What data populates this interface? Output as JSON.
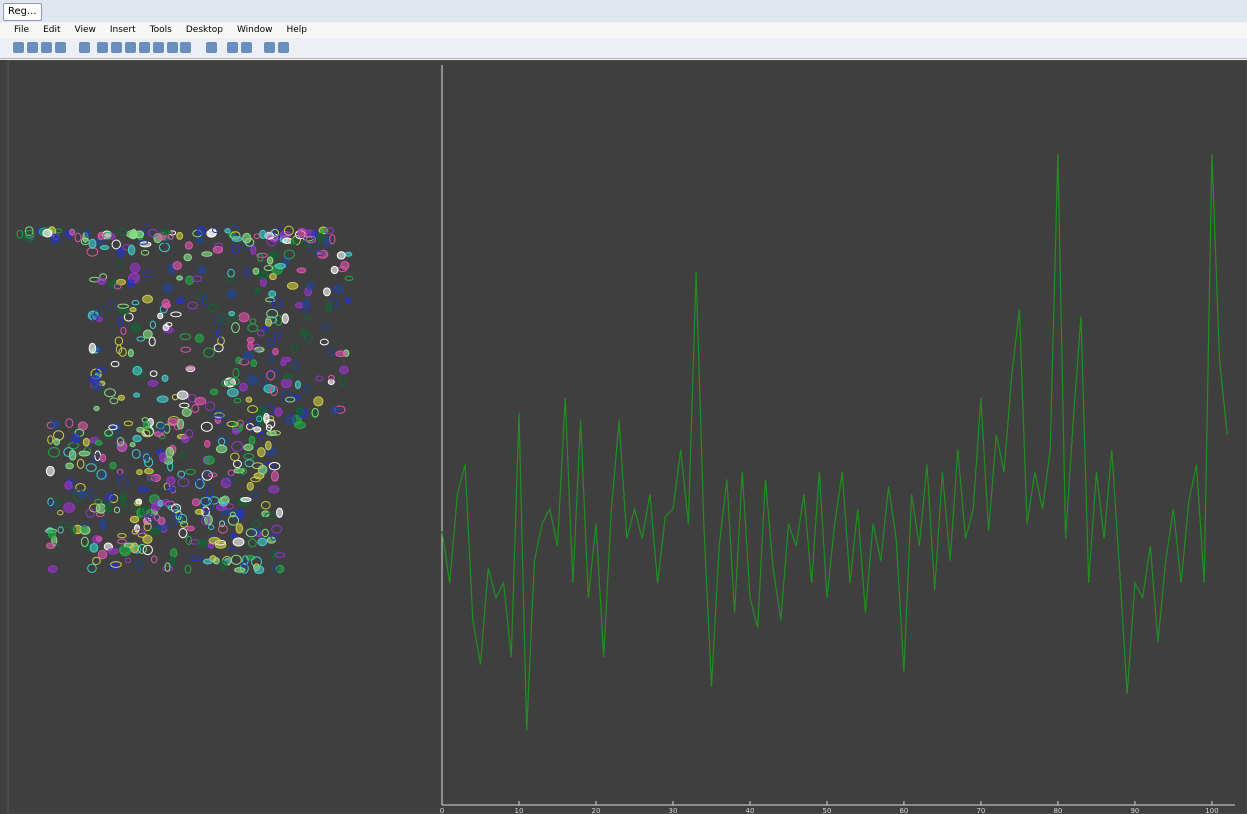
{
  "window": {
    "title": "Reg..."
  },
  "menu": [
    "File",
    "Edit",
    "View",
    "Insert",
    "Tools",
    "Desktop",
    "Window",
    "Help"
  ],
  "chart_data": {
    "type": "line",
    "color": "#1f8f1f",
    "x": [
      0,
      1,
      2,
      3,
      4,
      5,
      6,
      7,
      8,
      9,
      10,
      11,
      12,
      13,
      14,
      15,
      16,
      17,
      18,
      19,
      20,
      21,
      22,
      23,
      24,
      25,
      26,
      27,
      28,
      29,
      30,
      31,
      32,
      33,
      34,
      35,
      36,
      37,
      38,
      39,
      40,
      41,
      42,
      43,
      44,
      45,
      46,
      47,
      48,
      49,
      50,
      51,
      52,
      53,
      54,
      55,
      56,
      57,
      58,
      59,
      60,
      61,
      62,
      63,
      64,
      65,
      66,
      67,
      68,
      69,
      70,
      71,
      72,
      73,
      74,
      75,
      76,
      77,
      78,
      79,
      80,
      81,
      82,
      83,
      84,
      85,
      86,
      87,
      88,
      89,
      90,
      91,
      92,
      93,
      94,
      95,
      96,
      97,
      98,
      99,
      100,
      101,
      102
    ],
    "values": [
      37,
      30,
      42,
      46,
      25,
      19,
      32,
      28,
      30,
      20,
      53,
      10,
      33,
      38,
      40,
      35,
      55,
      30,
      52,
      28,
      38,
      20,
      40,
      52,
      36,
      40,
      36,
      42,
      30,
      39,
      40,
      48,
      38,
      72,
      38,
      16,
      35,
      44,
      26,
      45,
      28,
      24,
      44,
      32,
      25,
      38,
      35,
      42,
      30,
      45,
      28,
      38,
      45,
      30,
      40,
      26,
      38,
      33,
      43,
      36,
      18,
      42,
      35,
      46,
      29,
      45,
      33,
      48,
      36,
      40,
      55,
      37,
      50,
      45,
      58,
      67,
      38,
      45,
      40,
      48,
      88,
      36,
      52,
      66,
      30,
      45,
      36,
      48,
      32,
      15,
      30,
      28,
      35,
      22,
      33,
      40,
      30,
      41,
      46,
      30,
      88,
      60,
      50
    ],
    "xlim": [
      0,
      103
    ],
    "ylim": [
      0,
      100
    ],
    "xticks": [
      0,
      10,
      20,
      30,
      40,
      50,
      60,
      70,
      80,
      90,
      100
    ]
  }
}
